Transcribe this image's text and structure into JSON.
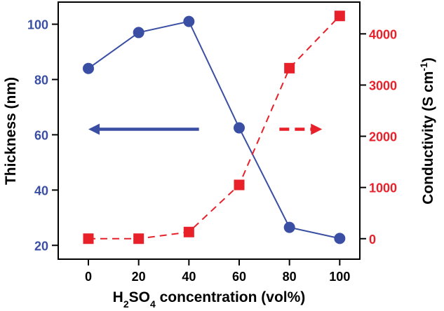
{
  "colors": {
    "left_axis": "#3a4fa3",
    "right_axis": "#e8202a",
    "thickness_series": "#3a4fa3",
    "conductivity_series": "#e8202a",
    "axes": "#000000"
  },
  "chart_data": {
    "type": "line",
    "xlabel": {
      "parts": [
        {
          "text": "H",
          "style": "normal"
        },
        {
          "text": "2",
          "style": "sub"
        },
        {
          "text": "SO",
          "style": "normal"
        },
        {
          "text": "4",
          "style": "sub"
        },
        {
          "text": " concentration (vol%)",
          "style": "normal"
        }
      ]
    },
    "ylabel_left": "Thickness (nm)",
    "ylabel_right": {
      "parts": [
        {
          "text": "Conductivity (S cm",
          "style": "normal"
        },
        {
          "text": "-1",
          "style": "sup"
        },
        {
          "text": ")",
          "style": "normal"
        }
      ]
    },
    "x": [
      0,
      20,
      40,
      60,
      80,
      100
    ],
    "xlim": [
      -12,
      108
    ],
    "xticks": [
      "0",
      "20",
      "40",
      "60",
      "80",
      "100"
    ],
    "ylim_left": [
      15,
      108
    ],
    "yticks_left": [
      "20",
      "40",
      "60",
      "80",
      "100"
    ],
    "ylim_right": [
      -400,
      4620
    ],
    "yticks_right": [
      "0",
      "1000",
      "2000",
      "3000",
      "4000"
    ],
    "grid": false,
    "series": [
      {
        "axis": "left",
        "marker": "circle",
        "line": "solid",
        "values": [
          84,
          97,
          101,
          62.5,
          26.5,
          22.5
        ]
      },
      {
        "axis": "right",
        "marker": "square",
        "line": "dashed",
        "values": [
          0,
          0,
          130,
          1050,
          3330,
          4350
        ]
      }
    ],
    "annotations": [
      {
        "type": "arrow",
        "direction": "left",
        "style": "solid",
        "points_to": "left-axis",
        "from": [
          44,
          62
        ],
        "to": [
          0,
          62
        ]
      },
      {
        "type": "arrow",
        "direction": "right",
        "style": "dashed",
        "points_to": "right-axis",
        "from": [
          76,
          62
        ],
        "to": [
          93,
          62
        ]
      }
    ]
  }
}
